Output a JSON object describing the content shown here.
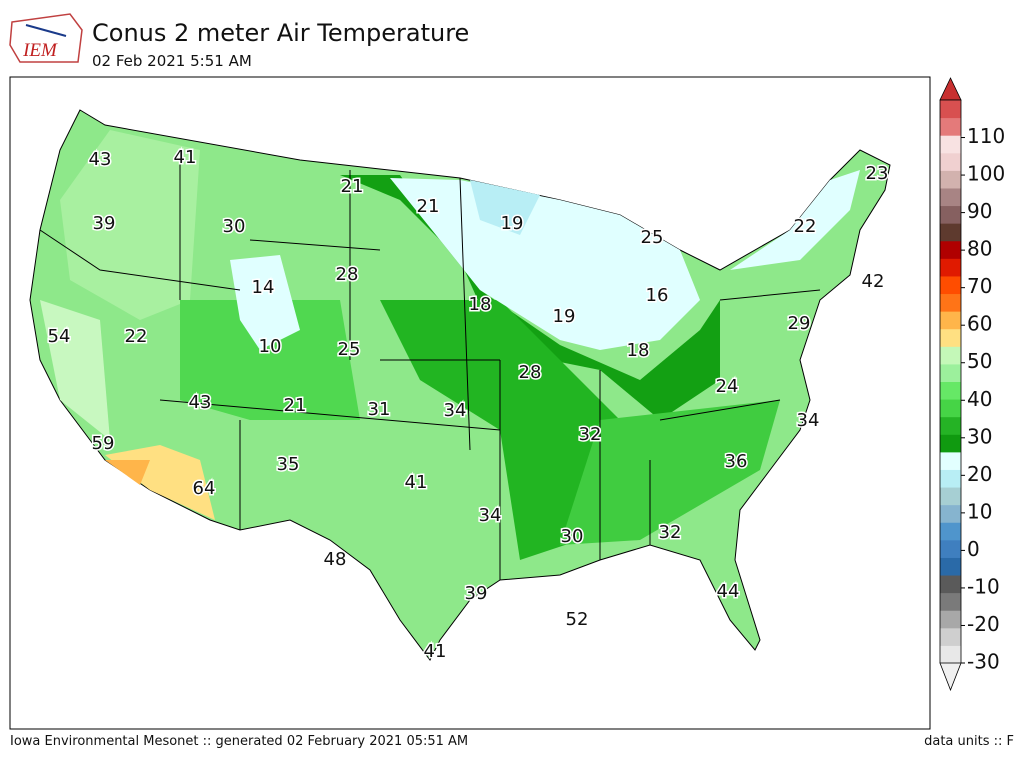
{
  "header": {
    "logo": "IEM",
    "title": "Conus 2 meter Air Temperature",
    "subtitle": "02 Feb 2021 5:51 AM"
  },
  "map": {
    "labels": [
      43,
      41,
      21,
      21,
      23,
      39,
      30,
      19,
      25,
      22,
      14,
      28,
      18,
      19,
      16,
      42,
      54,
      22,
      10,
      25,
      18,
      29,
      28,
      24,
      43,
      21,
      31,
      34,
      32,
      34,
      59,
      35,
      36,
      41,
      64,
      34,
      30,
      32,
      48,
      39,
      52,
      44,
      41
    ]
  },
  "colorbar": {
    "lim": [
      -30,
      120
    ],
    "ticks": [
      -30,
      -20,
      -10,
      0,
      10,
      20,
      30,
      40,
      50,
      60,
      70,
      80,
      90,
      100,
      110
    ],
    "colors": [
      "#e8e8e8",
      "#cfcfcf",
      "#a8a8a8",
      "#7a7a7a",
      "#5a5a5a",
      "#2a6aa8",
      "#3f7fbf",
      "#4f95cc",
      "#86b4cf",
      "#a6cfd3",
      "#b8eef5",
      "#e2ffff",
      "#109a10",
      "#25b325",
      "#46d446",
      "#66e866",
      "#9cf09c",
      "#c4f8b8",
      "#ffe082",
      "#ffb54a",
      "#ff7417",
      "#ff4d00",
      "#e01a00",
      "#b00000",
      "#5e3a2e",
      "#866060",
      "#a88484",
      "#d2b2ae",
      "#f0d0d0",
      "#f8e2e2",
      "#e47a7a",
      "#d85050"
    ]
  },
  "footer": {
    "left": "Iowa Environmental Mesonet :: generated 02 February 2021 05:51 AM",
    "right": "data units :: F"
  }
}
